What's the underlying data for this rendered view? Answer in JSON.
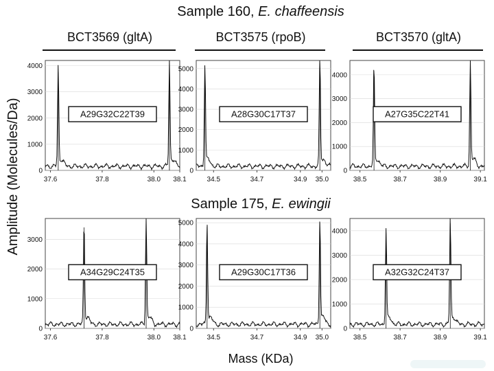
{
  "header_top": {
    "sample": "Sample 160,",
    "organism": "E. chaffeensis"
  },
  "header_bottom": {
    "sample": "Sample 175,",
    "organism": "E. ewingii"
  },
  "genes": [
    "BCT3569 (gltA)",
    "BCT3575 (rpoB)",
    "BCT3570 (gltA)"
  ],
  "ylabel": "Amplitude (Molecules/Da)",
  "xlabel": "Mass (KDa)",
  "colors": {
    "trace": "#111111",
    "frame": "#444444"
  },
  "chart_data": [
    {
      "type": "line",
      "label": "A29G32C22T39",
      "xticks": [
        "37.6",
        "37.8",
        "38.0",
        "38.1"
      ],
      "xtick_values": [
        37.6,
        37.8,
        38.0,
        38.1
      ],
      "xlim": [
        37.58,
        38.1
      ],
      "yticks": [
        "0",
        "1000",
        "2000",
        "3000",
        "4000"
      ],
      "ylim": [
        0,
        4200
      ],
      "peaks": [
        {
          "x": 37.63,
          "y": 3750
        },
        {
          "x": 38.06,
          "y": 4000
        }
      ]
    },
    {
      "type": "line",
      "label": "A28G30C17T37",
      "xticks": [
        "34.5",
        "34.7",
        "34.9",
        "35.0"
      ],
      "xtick_values": [
        34.5,
        34.7,
        34.9,
        35.0
      ],
      "xlim": [
        34.42,
        35.04
      ],
      "yticks": [
        "0",
        "1000",
        "2000",
        "3000",
        "4000",
        "5000"
      ],
      "ylim": [
        0,
        5400
      ],
      "peaks": [
        {
          "x": 34.46,
          "y": 5000
        },
        {
          "x": 34.99,
          "y": 5300
        }
      ]
    },
    {
      "type": "line",
      "label": "A27G35C22T41",
      "xticks": [
        "38.5",
        "38.7",
        "38.9",
        "39.1"
      ],
      "xtick_values": [
        38.5,
        38.7,
        38.9,
        39.1
      ],
      "xlim": [
        38.45,
        39.12
      ],
      "yticks": [
        "0",
        "1000",
        "2000",
        "3000",
        "4000"
      ],
      "ylim": [
        0,
        4600
      ],
      "peaks": [
        {
          "x": 38.57,
          "y": 4150
        },
        {
          "x": 39.05,
          "y": 4450
        }
      ]
    },
    {
      "type": "line",
      "label": "A34G29C24T35",
      "xticks": [
        "37.6",
        "37.8",
        "38.0",
        "38.1"
      ],
      "xtick_values": [
        37.6,
        37.8,
        38.0,
        38.1
      ],
      "xlim": [
        37.58,
        38.1
      ],
      "yticks": [
        "0",
        "1000",
        "2000",
        "3000"
      ],
      "ylim": [
        0,
        3700
      ],
      "peaks": [
        {
          "x": 37.73,
          "y": 3400
        },
        {
          "x": 37.97,
          "y": 3600
        }
      ]
    },
    {
      "type": "line",
      "label": "A29G30C17T36",
      "xticks": [
        "34.5",
        "34.7",
        "34.9",
        "35.0"
      ],
      "xtick_values": [
        34.5,
        34.7,
        34.9,
        35.0
      ],
      "xlim": [
        34.42,
        35.04
      ],
      "yticks": [
        "0",
        "1000",
        "2000",
        "3000",
        "4000",
        "5000"
      ],
      "ylim": [
        0,
        5200
      ],
      "peaks": [
        {
          "x": 34.47,
          "y": 4800
        },
        {
          "x": 34.99,
          "y": 5000
        }
      ]
    },
    {
      "type": "line",
      "label": "A32G32C24T37",
      "xticks": [
        "38.5",
        "38.7",
        "38.9",
        "39.1"
      ],
      "xtick_values": [
        38.5,
        38.7,
        38.9,
        39.1
      ],
      "xlim": [
        38.45,
        39.12
      ],
      "yticks": [
        "0",
        "1000",
        "2000",
        "3000",
        "4000"
      ],
      "ylim": [
        0,
        4500
      ],
      "peaks": [
        {
          "x": 38.63,
          "y": 3900
        },
        {
          "x": 38.95,
          "y": 4300
        }
      ]
    }
  ]
}
